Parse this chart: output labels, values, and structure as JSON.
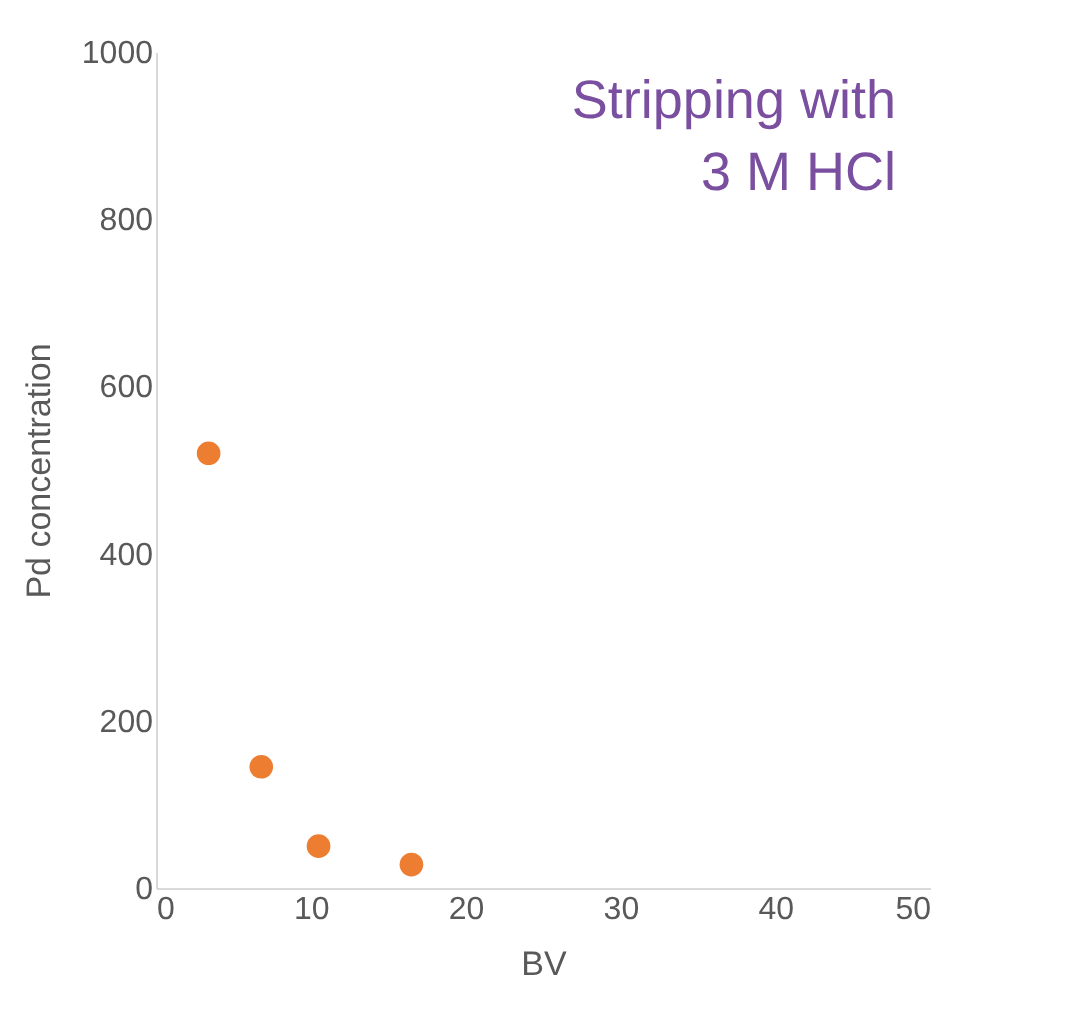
{
  "chart_data": {
    "type": "scatter",
    "xlabel": "BV",
    "ylabel": "Pd concentration",
    "x": [
      3.4,
      6.8,
      10.5,
      16.5
    ],
    "values": [
      520,
      145,
      50,
      28
    ],
    "color": "#ed7d31",
    "marker": "circle",
    "xlim": [
      0,
      50
    ],
    "xticks": [
      0,
      10,
      20,
      30,
      40,
      50
    ],
    "ylim": [
      0,
      1000
    ],
    "yticks": [
      0,
      200,
      400,
      600,
      800,
      1000
    ],
    "grid": false,
    "annotations": [
      "Stripping with\n3 M HCl"
    ]
  }
}
